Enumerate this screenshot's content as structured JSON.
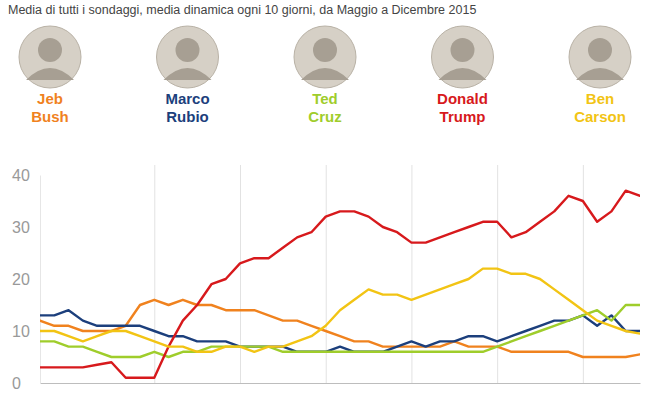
{
  "chart_data": {
    "type": "line",
    "subtitle": "Media di tutti i sondaggi, media dinamica ogni 10 giorni, da Maggio a Dicembre 2015",
    "x": [
      0,
      5,
      10,
      15,
      20,
      25,
      30,
      35,
      40,
      45,
      50,
      55,
      60,
      65,
      70,
      75,
      80,
      85,
      90,
      95,
      100,
      105,
      110,
      115,
      120,
      125,
      130,
      135,
      140,
      145,
      150,
      155,
      160,
      165,
      170,
      175,
      180,
      185,
      190,
      195,
      200,
      205,
      210
    ],
    "series": [
      {
        "name": "Jeb Bush",
        "color": "#f0821e",
        "values": [
          12,
          11,
          11,
          10,
          10,
          10,
          11,
          15,
          16,
          15,
          16,
          15,
          15,
          14,
          14,
          14,
          13,
          12,
          12,
          11,
          10,
          9,
          8,
          8,
          7,
          7,
          7,
          7,
          7,
          8,
          7,
          7,
          7,
          6,
          6,
          6,
          6,
          6,
          5,
          5,
          5,
          5,
          5.5
        ]
      },
      {
        "name": "Marco Rubio",
        "color": "#1c3f7c",
        "values": [
          13,
          13,
          14,
          12,
          11,
          11,
          11,
          11,
          10,
          9,
          9,
          8,
          8,
          8,
          7,
          7,
          7,
          7,
          6,
          6,
          6,
          7,
          6,
          6,
          6,
          7,
          8,
          7,
          8,
          8,
          9,
          9,
          8,
          9,
          10,
          11,
          12,
          12,
          13,
          11,
          13,
          10,
          10
        ]
      },
      {
        "name": "Ted Cruz",
        "color": "#9fcd2b",
        "values": [
          8,
          8,
          7,
          7,
          6,
          5,
          5,
          5,
          6,
          5,
          6,
          6,
          7,
          7,
          7,
          7,
          7,
          6,
          6,
          6,
          6,
          6,
          6,
          6,
          6,
          6,
          6,
          6,
          6,
          6,
          6,
          6,
          7,
          8,
          9,
          10,
          11,
          12,
          13,
          14,
          12,
          15,
          15
        ]
      },
      {
        "name": "Donald Trump",
        "color": "#d7191c",
        "values": [
          3,
          3,
          3,
          3,
          3.5,
          4,
          1,
          1,
          1,
          7,
          12,
          15,
          19,
          20,
          23,
          24,
          24,
          26,
          28,
          29,
          32,
          33,
          33,
          32,
          30,
          29,
          27,
          27,
          28,
          29,
          30,
          31,
          31,
          28,
          29,
          31,
          33,
          36,
          35,
          31,
          33,
          37,
          36
        ]
      },
      {
        "name": "Ben Carson",
        "color": "#f2c414",
        "values": [
          10,
          10,
          9,
          8,
          9,
          10,
          10,
          9,
          8,
          7,
          7,
          6,
          6,
          7,
          7,
          6,
          7,
          7,
          8,
          9,
          11,
          14,
          16,
          18,
          17,
          17,
          16,
          17,
          18,
          19,
          20,
          22,
          22,
          21,
          21,
          20,
          18,
          16,
          14,
          12,
          11,
          10,
          9.5
        ]
      }
    ],
    "xlim": [
      0,
      210
    ],
    "xticks": [
      40,
      70,
      100,
      130,
      160,
      190
    ],
    "ylim": [
      0,
      40
    ],
    "yticks": [
      0,
      10,
      20,
      30,
      40
    ],
    "grid": "x",
    "legend": "top",
    "tick_labels": "y"
  }
}
